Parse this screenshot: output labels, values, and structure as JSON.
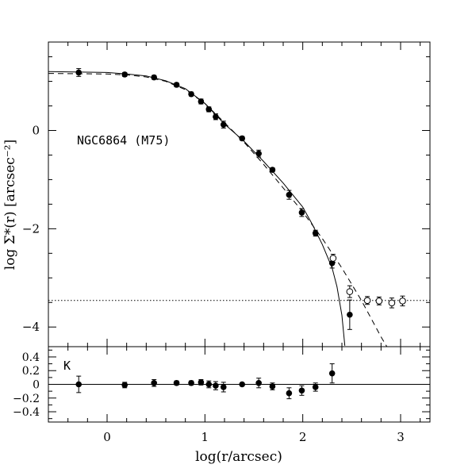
{
  "chart_data": [
    {
      "type": "scatter",
      "panel": "top",
      "title": "",
      "annotation": "NGC6864 (M75)",
      "xlabel": "log(r/arcsec)",
      "ylabel": "log Σ*(r) [arcsec⁻²]",
      "xlim": [
        -0.6,
        3.3
      ],
      "ylim": [
        -4.4,
        1.8
      ],
      "yticks": [
        0,
        -2,
        -4
      ],
      "ytick_labels": [
        "0",
        "−2",
        "−4"
      ],
      "grid": false,
      "series": [
        {
          "marker": "filled-circle",
          "points": [
            {
              "x": -0.29,
              "y": 1.18,
              "err": 0.08
            },
            {
              "x": 0.18,
              "y": 1.14,
              "err": 0.04
            },
            {
              "x": 0.48,
              "y": 1.08,
              "err": 0.04
            },
            {
              "x": 0.71,
              "y": 0.93,
              "err": 0.04
            },
            {
              "x": 0.86,
              "y": 0.74,
              "err": 0.04
            },
            {
              "x": 0.96,
              "y": 0.59,
              "err": 0.05
            },
            {
              "x": 1.04,
              "y": 0.43,
              "err": 0.05
            },
            {
              "x": 1.11,
              "y": 0.28,
              "err": 0.06
            },
            {
              "x": 1.19,
              "y": 0.12,
              "err": 0.07
            },
            {
              "x": 1.38,
              "y": -0.16,
              "err": 0.04
            },
            {
              "x": 1.55,
              "y": -0.47,
              "err": 0.07
            },
            {
              "x": 1.69,
              "y": -0.8,
              "err": 0.04
            },
            {
              "x": 1.86,
              "y": -1.31,
              "err": 0.09
            },
            {
              "x": 1.99,
              "y": -1.67,
              "err": 0.08
            },
            {
              "x": 2.13,
              "y": -2.09,
              "err": 0.06
            },
            {
              "x": 2.3,
              "y": -2.7,
              "err": 0.1
            },
            {
              "x": 2.48,
              "y": -3.75,
              "err": 0.3
            }
          ]
        },
        {
          "marker": "open-circle",
          "points": [
            {
              "x": 2.31,
              "y": -2.6,
              "err": 0.08
            },
            {
              "x": 2.48,
              "y": -3.28,
              "err": 0.12
            },
            {
              "x": 2.66,
              "y": -3.46,
              "err": 0.08
            },
            {
              "x": 2.78,
              "y": -3.47,
              "err": 0.08
            },
            {
              "x": 2.91,
              "y": -3.51,
              "err": 0.1
            },
            {
              "x": 3.02,
              "y": -3.47,
              "err": 0.1
            }
          ]
        }
      ],
      "model_solid": [
        {
          "x": -0.6,
          "y": 1.2
        },
        {
          "x": 0.0,
          "y": 1.18
        },
        {
          "x": 0.2,
          "y": 1.15
        },
        {
          "x": 0.4,
          "y": 1.11
        },
        {
          "x": 0.6,
          "y": 1.01
        },
        {
          "x": 0.8,
          "y": 0.85
        },
        {
          "x": 1.0,
          "y": 0.55
        },
        {
          "x": 1.2,
          "y": 0.13
        },
        {
          "x": 1.4,
          "y": -0.22
        },
        {
          "x": 1.6,
          "y": -0.63
        },
        {
          "x": 1.8,
          "y": -1.07
        },
        {
          "x": 2.0,
          "y": -1.56
        },
        {
          "x": 2.1,
          "y": -1.92
        },
        {
          "x": 2.2,
          "y": -2.32
        },
        {
          "x": 2.3,
          "y": -2.8
        },
        {
          "x": 2.35,
          "y": -3.18
        },
        {
          "x": 2.4,
          "y": -3.76
        },
        {
          "x": 2.43,
          "y": -4.38
        }
      ],
      "model_dashed": [
        {
          "x": -0.6,
          "y": 1.16
        },
        {
          "x": 0.0,
          "y": 1.15
        },
        {
          "x": 0.2,
          "y": 1.13
        },
        {
          "x": 0.4,
          "y": 1.09
        },
        {
          "x": 0.6,
          "y": 1.0
        },
        {
          "x": 0.8,
          "y": 0.83
        },
        {
          "x": 1.0,
          "y": 0.55
        },
        {
          "x": 1.2,
          "y": 0.16
        },
        {
          "x": 1.4,
          "y": -0.24
        },
        {
          "x": 1.6,
          "y": -0.69
        },
        {
          "x": 1.8,
          "y": -1.17
        },
        {
          "x": 2.0,
          "y": -1.66
        },
        {
          "x": 2.2,
          "y": -2.2
        },
        {
          "x": 2.4,
          "y": -2.8
        },
        {
          "x": 2.6,
          "y": -3.46
        },
        {
          "x": 2.8,
          "y": -4.2
        },
        {
          "x": 2.86,
          "y": -4.4
        }
      ],
      "background_level": -3.46
    },
    {
      "type": "scatter",
      "panel": "bottom",
      "annotation": "K",
      "xlabel": "log(r/arcsec)",
      "ylabel": "",
      "xlim": [
        -0.6,
        3.3
      ],
      "ylim": [
        -0.55,
        0.55
      ],
      "xticks": [
        0,
        1,
        2,
        3
      ],
      "xtick_labels": [
        "0",
        "1",
        "2",
        "3"
      ],
      "yticks": [
        0.4,
        0.2,
        0,
        -0.2,
        -0.4
      ],
      "ytick_labels": [
        "0.4",
        "0.2",
        "0",
        "−0.2",
        "−0.4"
      ],
      "reference_line": 0,
      "points": [
        {
          "x": -0.29,
          "y": 0.0,
          "err": 0.12
        },
        {
          "x": 0.18,
          "y": -0.01,
          "err": 0.04
        },
        {
          "x": 0.48,
          "y": 0.02,
          "err": 0.05
        },
        {
          "x": 0.71,
          "y": 0.02,
          "err": 0.03
        },
        {
          "x": 0.86,
          "y": 0.02,
          "err": 0.03
        },
        {
          "x": 0.96,
          "y": 0.03,
          "err": 0.04
        },
        {
          "x": 1.04,
          "y": 0.0,
          "err": 0.05
        },
        {
          "x": 1.11,
          "y": -0.02,
          "err": 0.06
        },
        {
          "x": 1.19,
          "y": -0.04,
          "err": 0.07
        },
        {
          "x": 1.38,
          "y": 0.0,
          "err": 0.02
        },
        {
          "x": 1.55,
          "y": 0.02,
          "err": 0.07
        },
        {
          "x": 1.69,
          "y": -0.03,
          "err": 0.05
        },
        {
          "x": 1.86,
          "y": -0.13,
          "err": 0.08
        },
        {
          "x": 1.99,
          "y": -0.09,
          "err": 0.07
        },
        {
          "x": 2.13,
          "y": -0.04,
          "err": 0.06
        },
        {
          "x": 2.3,
          "y": 0.16,
          "err": 0.14
        }
      ]
    }
  ]
}
